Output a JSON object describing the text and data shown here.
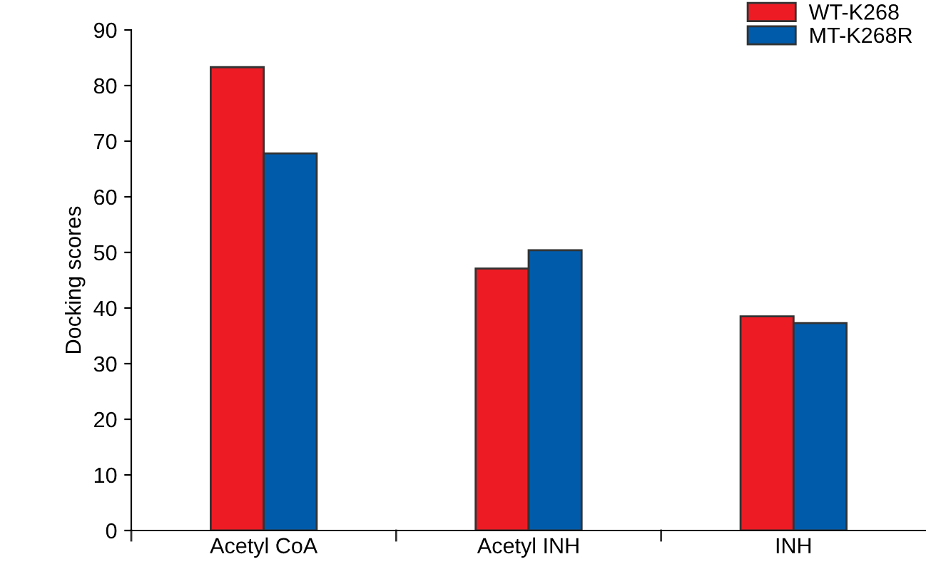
{
  "chart_data": {
    "type": "bar",
    "ylabel": "Docking scores",
    "categories": [
      "Acetyl CoA",
      "Acetyl INH",
      "INH"
    ],
    "series": [
      {
        "name": "WT-K268",
        "color": "#ed1c24",
        "values": [
          83.3,
          47.1,
          38.5
        ]
      },
      {
        "name": "MT-K268R",
        "color": "#005bab",
        "values": [
          67.8,
          50.4,
          37.3
        ]
      }
    ],
    "ylim": [
      0,
      90
    ],
    "yticks": [
      0,
      10,
      20,
      30,
      40,
      50,
      60,
      70,
      80,
      90
    ],
    "grid": false,
    "legend": "top right"
  }
}
